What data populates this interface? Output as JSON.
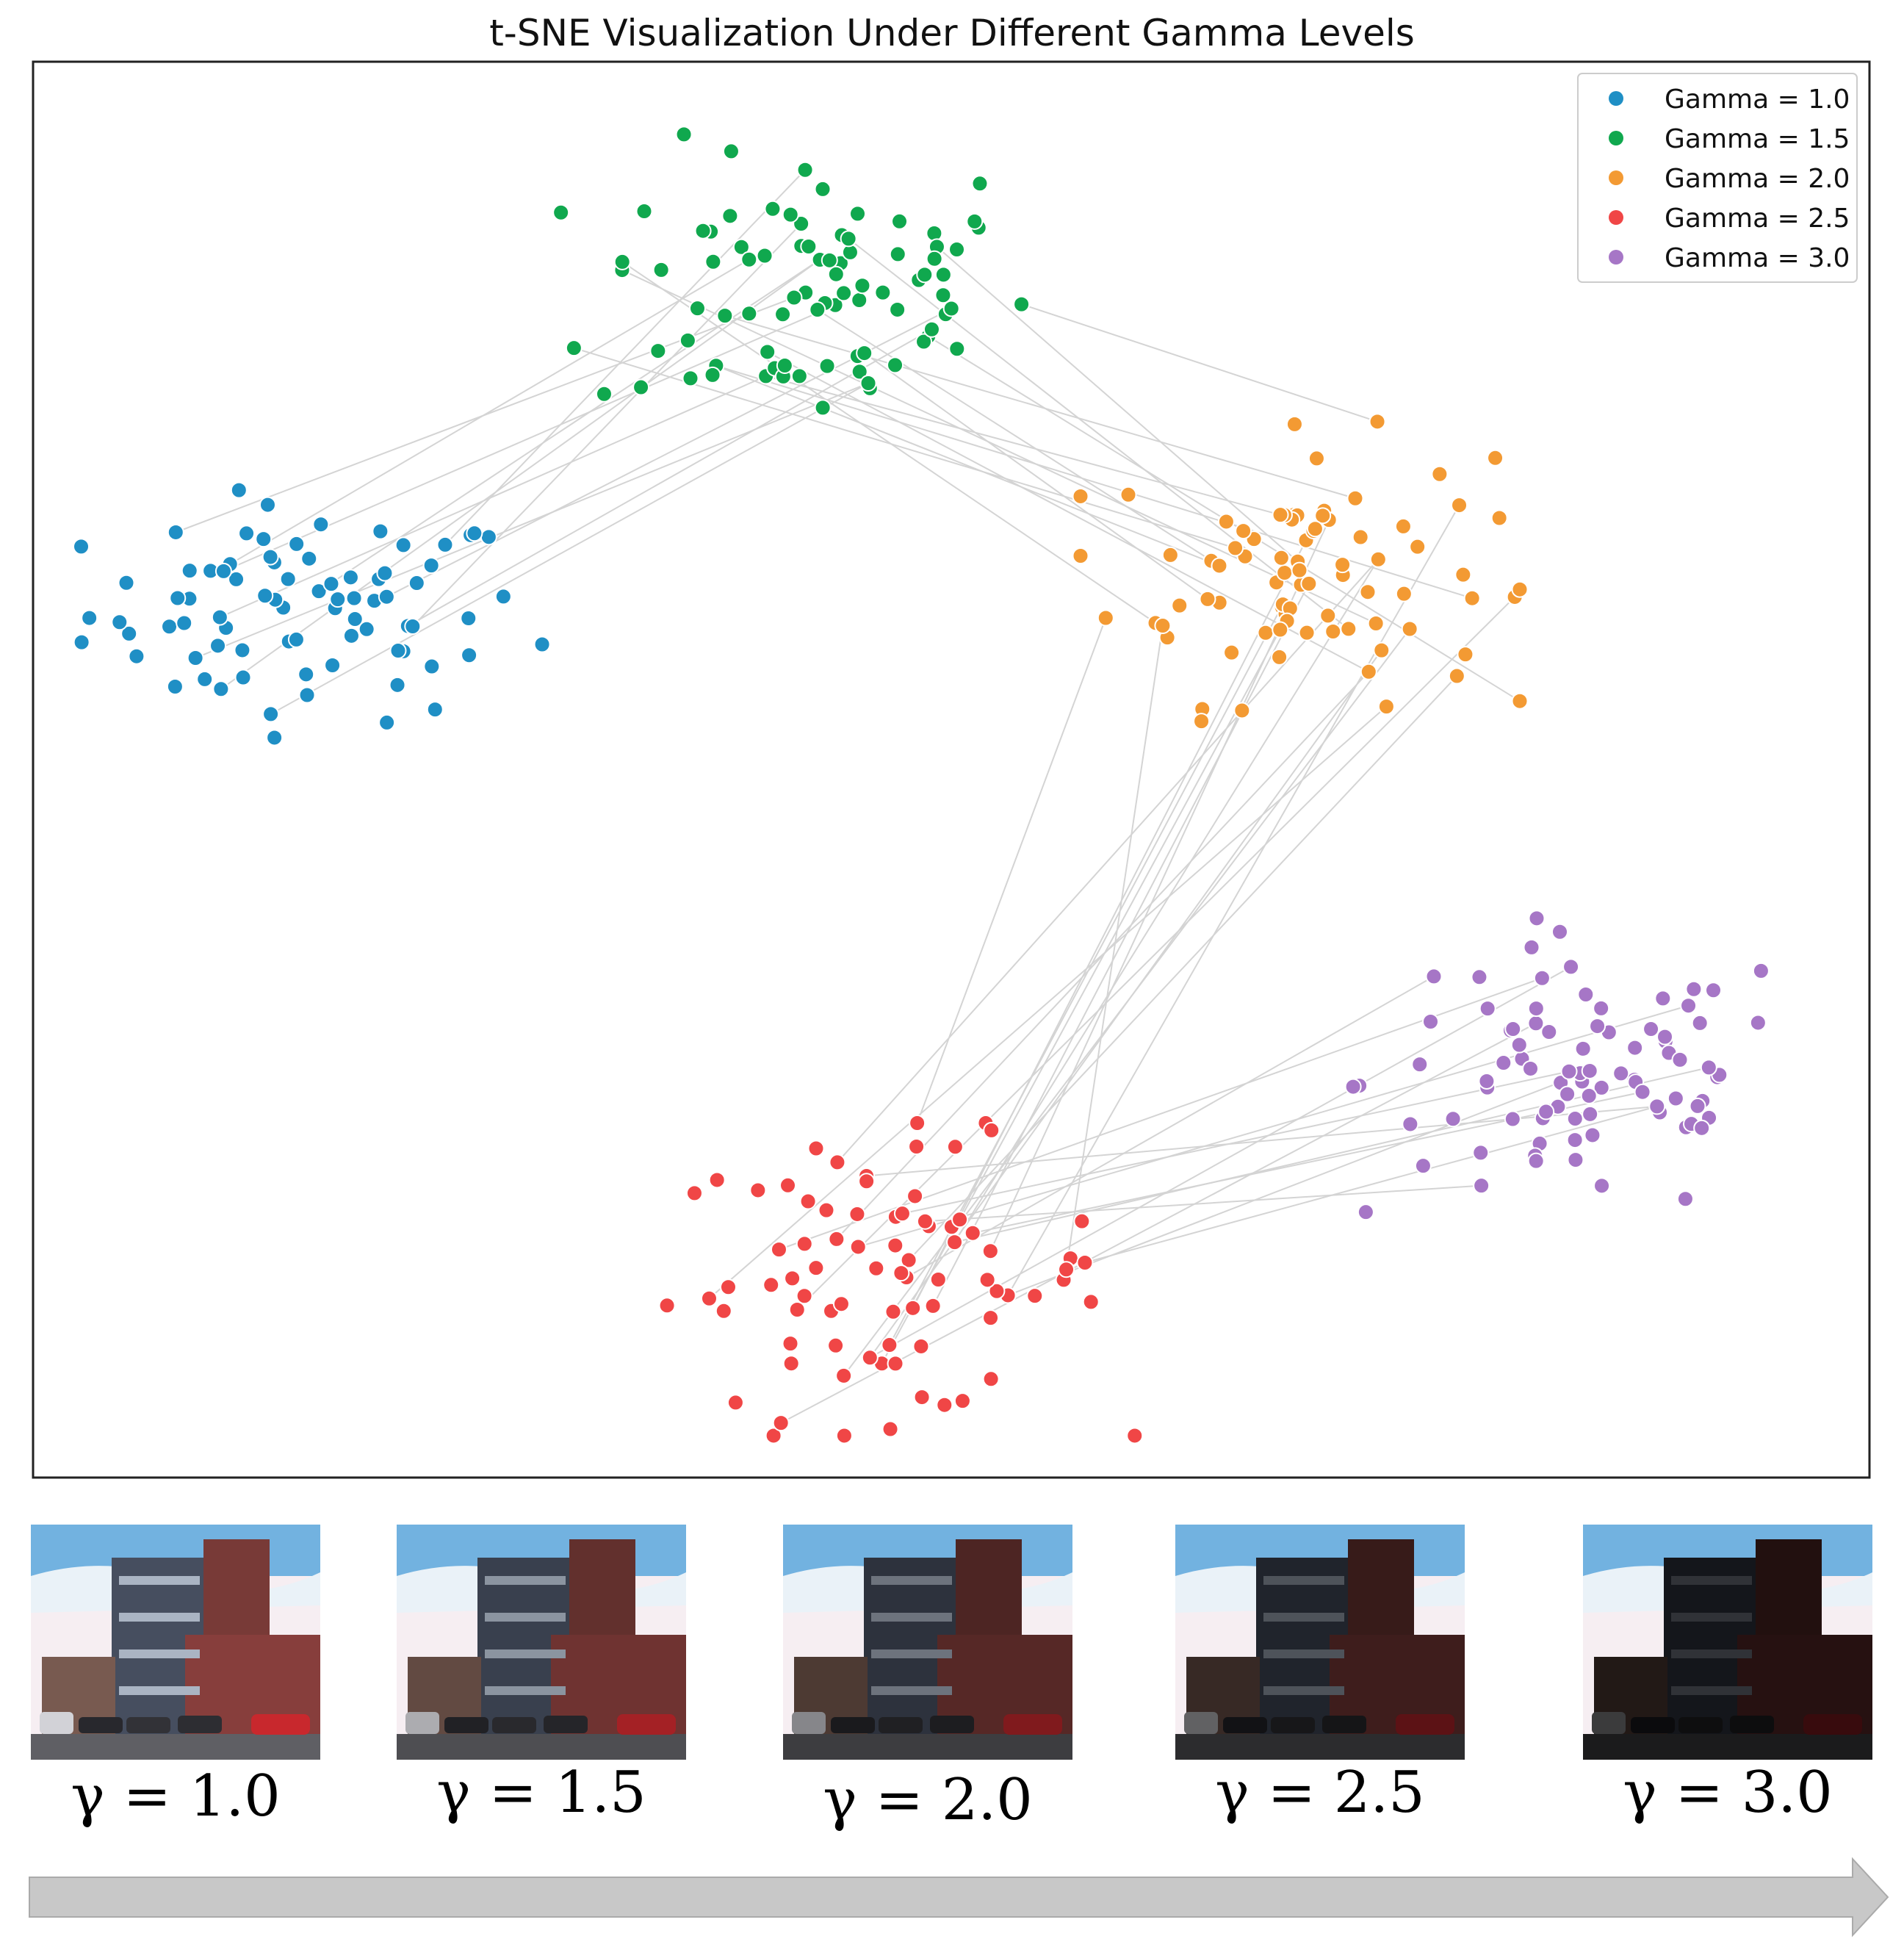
{
  "chart_data": {
    "type": "scatter",
    "title": "t-SNE Visualization Under Different Gamma Levels",
    "xlabel": "",
    "ylabel": "",
    "axes_ticks": false,
    "grid": false,
    "xlim": [
      0,
      100
    ],
    "ylim": [
      0,
      100
    ],
    "legend_position": "top-right",
    "series": [
      {
        "name": "Gamma = 1.0",
        "color": "#1f8fc5",
        "center": [
          15,
          61
        ],
        "spread": [
          6.0,
          3.8
        ],
        "count": 80
      },
      {
        "name": "Gamma = 1.5",
        "color": "#10a84e",
        "center": [
          42.5,
          84
        ],
        "spread": [
          6.0,
          5.0
        ],
        "count": 85
      },
      {
        "name": "Gamma = 2.0",
        "color": "#f39a33",
        "center": [
          69,
          64
        ],
        "spread": [
          5.2,
          4.6
        ],
        "count": 80
      },
      {
        "name": "Gamma = 2.5",
        "color": "#f04646",
        "center": [
          46.5,
          14
        ],
        "spread": [
          6.0,
          4.8
        ],
        "count": 80
      },
      {
        "name": "Gamma = 3.0",
        "color": "#a676c6",
        "center": [
          84.5,
          28
        ],
        "spread": [
          6.0,
          5.0
        ],
        "count": 85
      }
    ],
    "links": [
      {
        "from": "Gamma = 1.0",
        "to": "Gamma = 1.5",
        "count": 12
      },
      {
        "from": "Gamma = 1.5",
        "to": "Gamma = 2.0",
        "count": 14
      },
      {
        "from": "Gamma = 2.0",
        "to": "Gamma = 2.5",
        "count": 16
      },
      {
        "from": "Gamma = 2.5",
        "to": "Gamma = 3.0",
        "count": 12
      }
    ],
    "link_color": "#d4d4d4"
  },
  "thumbnails": [
    {
      "caption": "γ = 1.0",
      "gamma": 1.0
    },
    {
      "caption": "γ = 1.5",
      "gamma": 1.5
    },
    {
      "caption": "γ = 2.0",
      "gamma": 2.0
    },
    {
      "caption": "γ = 2.5",
      "gamma": 2.5
    },
    {
      "caption": "γ = 3.0",
      "gamma": 3.0
    }
  ],
  "arrow_color": "#c8c8c8"
}
